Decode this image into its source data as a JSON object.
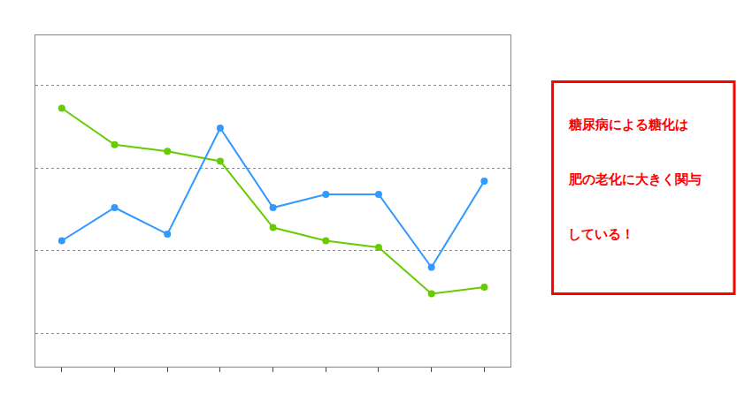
{
  "chart_data": {
    "type": "line",
    "categories": [
      null,
      null,
      null,
      null,
      null,
      null,
      null,
      null,
      null
    ],
    "series": [
      {
        "color": "#66cc00",
        "marker": "circle",
        "values": [
          78,
          67,
          65,
          62,
          42,
          38,
          36,
          22,
          24
        ]
      },
      {
        "color": "#3399ff",
        "marker": "circle",
        "values": [
          38,
          48,
          40,
          72,
          48,
          52,
          52,
          30,
          56
        ]
      }
    ],
    "ylim": [
      0,
      100
    ],
    "yticks": [
      85,
      60,
      35,
      10
    ],
    "grid": true,
    "tick_labels": false,
    "annotations": [
      {
        "text": "糖尿病による糖化は",
        "color": "#ff0000"
      },
      {
        "text": "肥の老化に大きく関与",
        "color": "#ff0000"
      },
      {
        "text": "している！",
        "color": "#ff0000"
      }
    ]
  }
}
